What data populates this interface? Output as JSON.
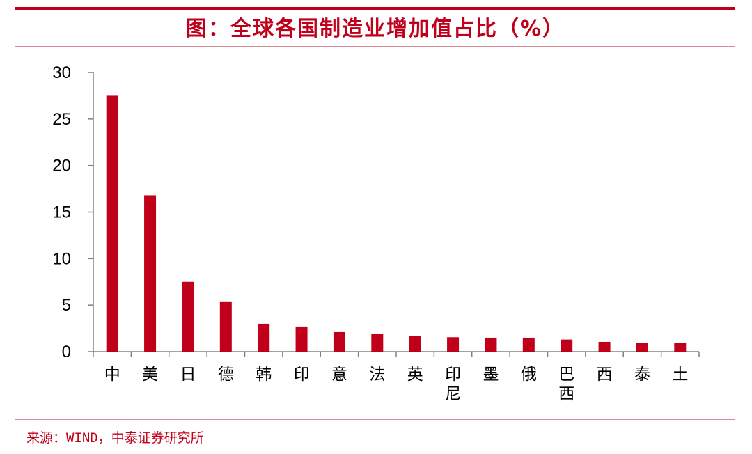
{
  "title": "图：全球各国制造业增加值占比（%）",
  "source": "来源：WIND，中泰证券研究所",
  "colors": {
    "accent": "#c0001a",
    "bar": "#c0001a",
    "rule": "#d98a94"
  },
  "chart_data": {
    "type": "bar",
    "title": "图：全球各国制造业增加值占比（%）",
    "xlabel": "",
    "ylabel": "",
    "categories": [
      "中",
      "美",
      "日",
      "德",
      "韩",
      "印",
      "意",
      "法",
      "英",
      "印尼",
      "墨",
      "俄",
      "巴西",
      "西",
      "泰",
      "土"
    ],
    "values": [
      27.5,
      16.8,
      7.5,
      5.4,
      3.0,
      2.7,
      2.1,
      1.9,
      1.7,
      1.55,
      1.5,
      1.5,
      1.3,
      1.05,
      0.95,
      0.95
    ],
    "ylim": [
      0,
      30
    ],
    "yticks": [
      0,
      5,
      10,
      15,
      20,
      25,
      30
    ],
    "grid": false,
    "legend": "none"
  }
}
